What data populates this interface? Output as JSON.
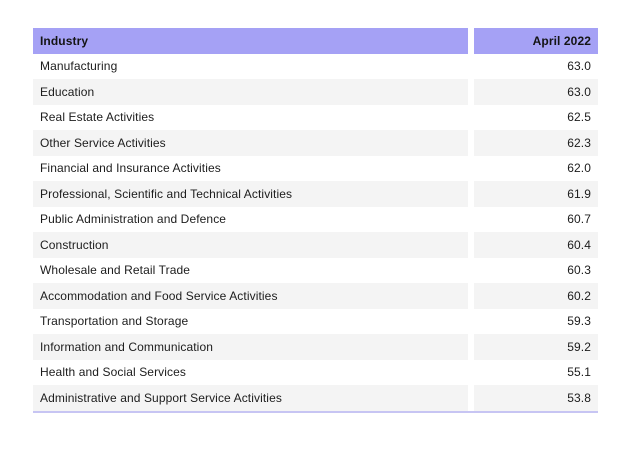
{
  "colors": {
    "header_bg": "#a5a1f5",
    "stripe_bg": "#f4f4f4",
    "row_bg": "#ffffff",
    "text": "#1c1c1c",
    "bottom_border": "#c7c5f3"
  },
  "table": {
    "header": {
      "industry": "Industry",
      "value": "April 2022"
    },
    "rows": [
      {
        "industry": "Manufacturing",
        "value": "63.0"
      },
      {
        "industry": "Education",
        "value": "63.0"
      },
      {
        "industry": "Real Estate Activities",
        "value": "62.5"
      },
      {
        "industry": "Other Service Activities",
        "value": "62.3"
      },
      {
        "industry": "Financial and Insurance Activities",
        "value": "62.0"
      },
      {
        "industry": "Professional, Scientific and Technical Activities",
        "value": "61.9"
      },
      {
        "industry": "Public Administration and Defence",
        "value": "60.7"
      },
      {
        "industry": "Construction",
        "value": "60.4"
      },
      {
        "industry": "Wholesale and Retail Trade",
        "value": "60.3"
      },
      {
        "industry": "Accommodation and Food Service Activities",
        "value": "60.2"
      },
      {
        "industry": "Transportation and Storage",
        "value": "59.3"
      },
      {
        "industry": "Information and Communication",
        "value": "59.2"
      },
      {
        "industry": "Health and Social Services",
        "value": "55.1"
      },
      {
        "industry": "Administrative and Support Service Activities",
        "value": "53.8"
      }
    ]
  },
  "chart_data": {
    "type": "table",
    "title": "",
    "columns": [
      "Industry",
      "April 2022"
    ],
    "categories": [
      "Manufacturing",
      "Education",
      "Real Estate Activities",
      "Other Service Activities",
      "Financial and Insurance Activities",
      "Professional, Scientific and Technical Activities",
      "Public Administration and Defence",
      "Construction",
      "Wholesale and Retail Trade",
      "Accommodation and Food Service Activities",
      "Transportation and Storage",
      "Information and Communication",
      "Health and Social Services",
      "Administrative and Support Service Activities"
    ],
    "values": [
      63.0,
      63.0,
      62.5,
      62.3,
      62.0,
      61.9,
      60.7,
      60.4,
      60.3,
      60.2,
      59.3,
      59.2,
      55.1,
      53.8
    ]
  }
}
